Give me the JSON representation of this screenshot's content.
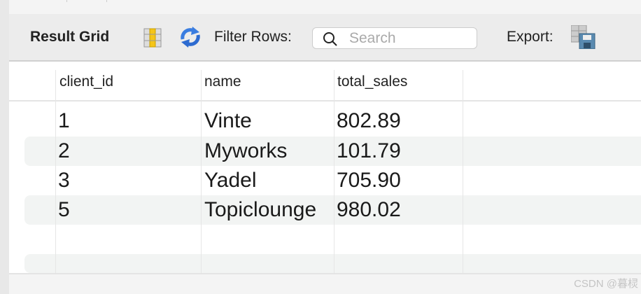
{
  "toolbar": {
    "title": "Result Grid",
    "filter_label": "Filter Rows:",
    "search_placeholder": "Search",
    "export_label": "Export:"
  },
  "columns": [
    "client_id",
    "name",
    "total_sales"
  ],
  "rows": [
    [
      "1",
      "Vinte",
      "802.89"
    ],
    [
      "2",
      "Myworks",
      "101.79"
    ],
    [
      "3",
      "Yadel",
      "705.90"
    ],
    [
      "5",
      "Topiclounge",
      "980.02"
    ]
  ],
  "watermark": "CSDN @暮棂"
}
